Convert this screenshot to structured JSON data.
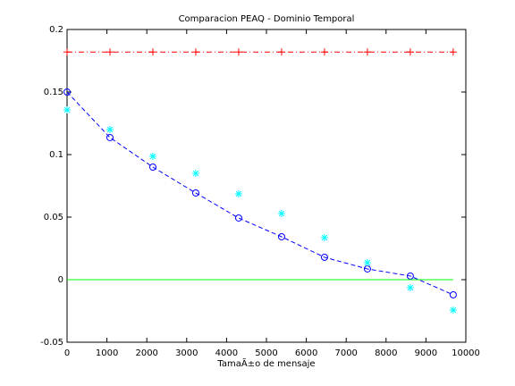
{
  "chart_data": {
    "type": "line",
    "title": "Comparacion PEAQ - Dominio Temporal",
    "x_label": "TamaÃ±o de mensaje",
    "x": [
      0,
      1076,
      2152,
      3228,
      4304,
      5380,
      6456,
      7532,
      8608,
      9684
    ],
    "series": [
      {
        "color": "#ff0000",
        "line": "dashdot",
        "marker": "plus",
        "values": [
          0.182,
          0.182,
          0.182,
          0.182,
          0.182,
          0.182,
          0.182,
          0.182,
          0.182,
          0.182
        ]
      },
      {
        "color": "#0000ff",
        "line": "dashed",
        "marker": "circle",
        "values": [
          0.15,
          0.1136,
          0.09,
          0.0693,
          0.0493,
          0.0343,
          0.0179,
          0.0086,
          0.0029,
          -0.0121
        ]
      },
      {
        "color": "#00ffff",
        "line": "none",
        "marker": "asterisk",
        "values": [
          0.1357,
          0.12,
          0.0986,
          0.085,
          0.0686,
          0.0529,
          0.0336,
          0.0136,
          -0.0064,
          -0.0243
        ]
      },
      {
        "color": "#00ff00",
        "line": "solid",
        "marker": "none",
        "values": [
          0,
          0,
          0,
          0,
          0,
          0,
          0,
          0,
          0,
          0
        ]
      }
    ],
    "xlim": [
      0,
      10000
    ],
    "xticks": [
      0,
      1000,
      2000,
      3000,
      4000,
      5000,
      6000,
      7000,
      8000,
      9000,
      10000
    ],
    "ylim": [
      -0.05,
      0.2
    ],
    "yticks": [
      -0.05,
      0,
      0.05,
      0.1,
      0.15,
      0.2
    ]
  }
}
